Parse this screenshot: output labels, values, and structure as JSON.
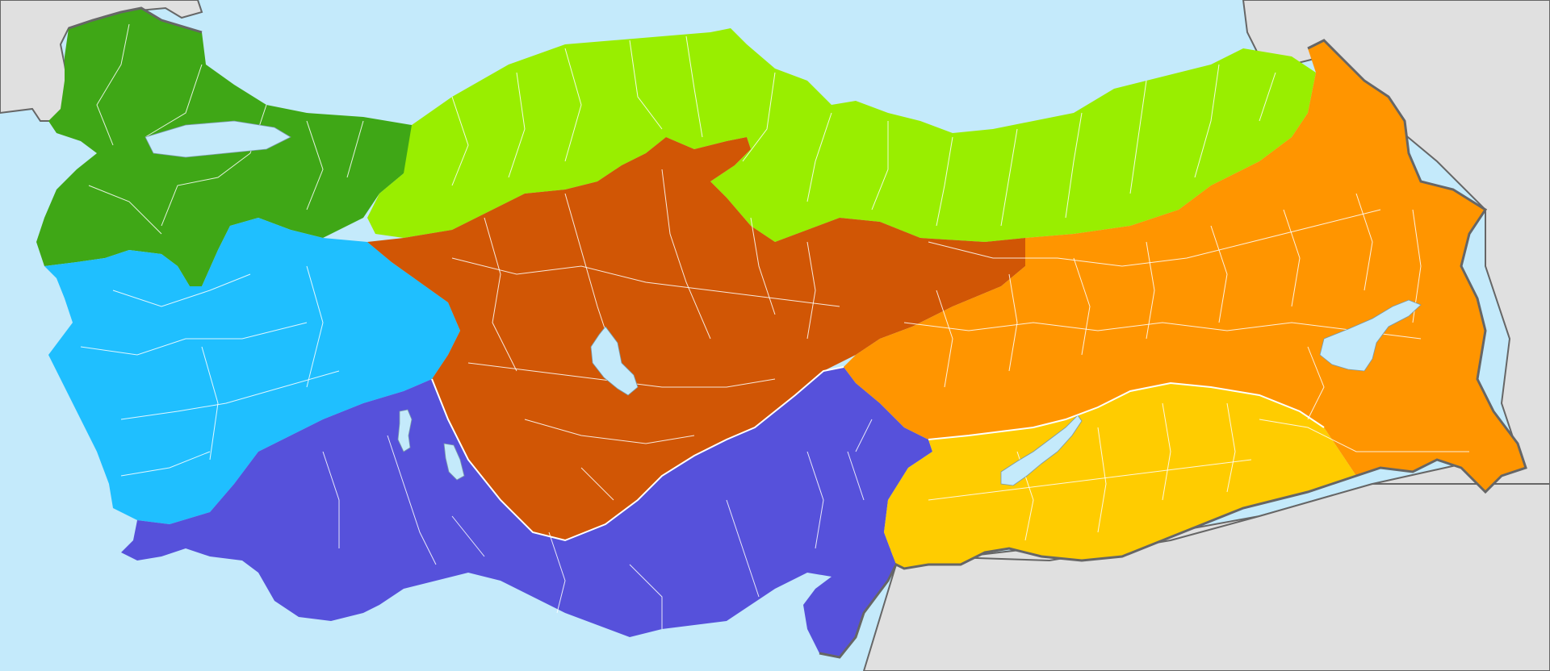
{
  "map": {
    "colors": {
      "sea": "#c4eafb",
      "neighbor_land": "#e0e0e0",
      "border_line": "#666666",
      "province_line": "#ffffff",
      "lake": "#c4eafb"
    },
    "regions": [
      {
        "id": "marmara",
        "color": "#3fa716"
      },
      {
        "id": "black-sea",
        "color": "#99ee00"
      },
      {
        "id": "aegean",
        "color": "#1fbfff"
      },
      {
        "id": "central-anatolia",
        "color": "#d15605"
      },
      {
        "id": "mediterranean",
        "color": "#5651db"
      },
      {
        "id": "eastern-anatolia",
        "color": "#ff9500"
      },
      {
        "id": "southeastern-anatolia",
        "color": "#ffcc00"
      }
    ]
  }
}
